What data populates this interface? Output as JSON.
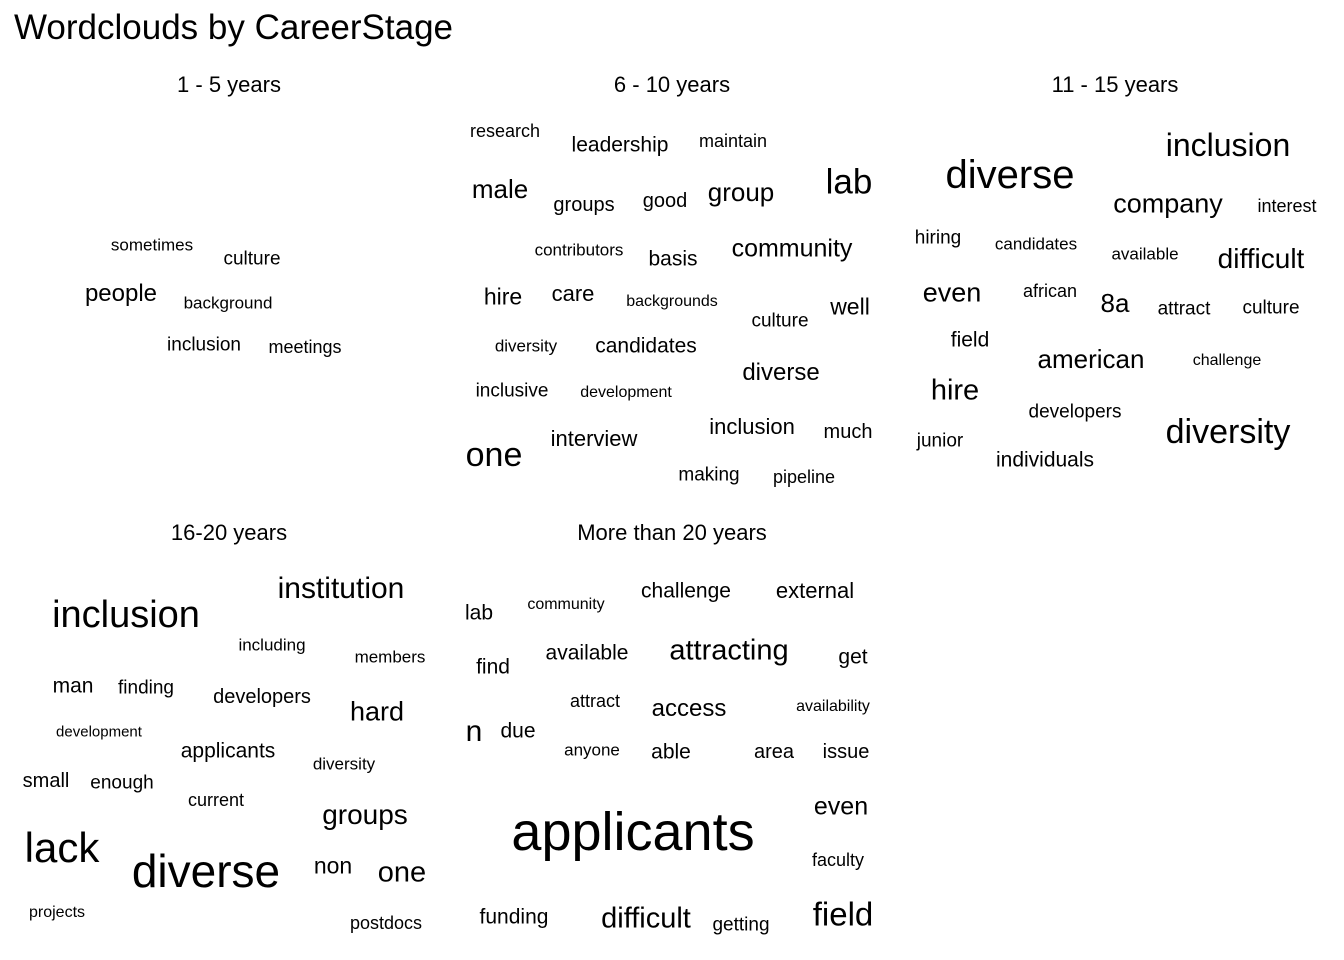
{
  "chart_data": {
    "type": "wordcloud",
    "title": "Wordclouds by CareerStage",
    "panels": [
      {
        "title": "1 - 5 years",
        "words": [
          {
            "text": "sometimes",
            "weight": 1
          },
          {
            "text": "culture",
            "weight": 2
          },
          {
            "text": "people",
            "weight": 3
          },
          {
            "text": "background",
            "weight": 1
          },
          {
            "text": "inclusion",
            "weight": 2
          },
          {
            "text": "meetings",
            "weight": 1
          }
        ]
      },
      {
        "title": "6 - 10 years",
        "words": [
          {
            "text": "research",
            "weight": 1
          },
          {
            "text": "leadership",
            "weight": 2
          },
          {
            "text": "maintain",
            "weight": 1
          },
          {
            "text": "male",
            "weight": 4
          },
          {
            "text": "groups",
            "weight": 2
          },
          {
            "text": "good",
            "weight": 2
          },
          {
            "text": "group",
            "weight": 4
          },
          {
            "text": "lab",
            "weight": 6
          },
          {
            "text": "contributors",
            "weight": 1
          },
          {
            "text": "basis",
            "weight": 2
          },
          {
            "text": "community",
            "weight": 4
          },
          {
            "text": "hire",
            "weight": 3
          },
          {
            "text": "care",
            "weight": 3
          },
          {
            "text": "backgrounds",
            "weight": 1
          },
          {
            "text": "culture",
            "weight": 2
          },
          {
            "text": "well",
            "weight": 3
          },
          {
            "text": "diversity",
            "weight": 1
          },
          {
            "text": "candidates",
            "weight": 3
          },
          {
            "text": "diverse",
            "weight": 3
          },
          {
            "text": "inclusive",
            "weight": 2
          },
          {
            "text": "development",
            "weight": 1
          },
          {
            "text": "inclusion",
            "weight": 3
          },
          {
            "text": "much",
            "weight": 2
          },
          {
            "text": "one",
            "weight": 6
          },
          {
            "text": "interview",
            "weight": 3
          },
          {
            "text": "making",
            "weight": 2
          },
          {
            "text": "pipeline",
            "weight": 1
          }
        ]
      },
      {
        "title": "11 - 15 years",
        "words": [
          {
            "text": "inclusion",
            "weight": 5
          },
          {
            "text": "diverse",
            "weight": 7
          },
          {
            "text": "company",
            "weight": 4
          },
          {
            "text": "interest",
            "weight": 1
          },
          {
            "text": "hiring",
            "weight": 2
          },
          {
            "text": "candidates",
            "weight": 1
          },
          {
            "text": "available",
            "weight": 1
          },
          {
            "text": "difficult",
            "weight": 4
          },
          {
            "text": "even",
            "weight": 4
          },
          {
            "text": "african",
            "weight": 2
          },
          {
            "text": "8a",
            "weight": 4
          },
          {
            "text": "attract",
            "weight": 2
          },
          {
            "text": "culture",
            "weight": 2
          },
          {
            "text": "field",
            "weight": 3
          },
          {
            "text": "american",
            "weight": 4
          },
          {
            "text": "challenge",
            "weight": 1
          },
          {
            "text": "hire",
            "weight": 5
          },
          {
            "text": "developers",
            "weight": 2
          },
          {
            "text": "diversity",
            "weight": 6
          },
          {
            "text": "junior",
            "weight": 2
          },
          {
            "text": "individuals",
            "weight": 3
          }
        ]
      },
      {
        "title": "16-20 years",
        "words": [
          {
            "text": "inclusion",
            "weight": 8
          },
          {
            "text": "institution",
            "weight": 6
          },
          {
            "text": "including",
            "weight": 1
          },
          {
            "text": "members",
            "weight": 1
          },
          {
            "text": "man",
            "weight": 3
          },
          {
            "text": "finding",
            "weight": 2
          },
          {
            "text": "developers",
            "weight": 3
          },
          {
            "text": "hard",
            "weight": 4
          },
          {
            "text": "development",
            "weight": 1
          },
          {
            "text": "applicants",
            "weight": 3
          },
          {
            "text": "diversity",
            "weight": 1
          },
          {
            "text": "small",
            "weight": 2
          },
          {
            "text": "enough",
            "weight": 2
          },
          {
            "text": "current",
            "weight": 2
          },
          {
            "text": "groups",
            "weight": 4
          },
          {
            "text": "lack",
            "weight": 9
          },
          {
            "text": "diverse",
            "weight": 10
          },
          {
            "text": "non",
            "weight": 3
          },
          {
            "text": "one",
            "weight": 4
          },
          {
            "text": "projects",
            "weight": 1
          },
          {
            "text": "postdocs",
            "weight": 1
          }
        ]
      },
      {
        "title": "More than 20 years",
        "words": [
          {
            "text": "lab",
            "weight": 3
          },
          {
            "text": "community",
            "weight": 1
          },
          {
            "text": "challenge",
            "weight": 3
          },
          {
            "text": "external",
            "weight": 3
          },
          {
            "text": "find",
            "weight": 3
          },
          {
            "text": "available",
            "weight": 3
          },
          {
            "text": "attracting",
            "weight": 5
          },
          {
            "text": "get",
            "weight": 3
          },
          {
            "text": "attract",
            "weight": 2
          },
          {
            "text": "access",
            "weight": 3
          },
          {
            "text": "availability",
            "weight": 1
          },
          {
            "text": "n",
            "weight": 5
          },
          {
            "text": "due",
            "weight": 3
          },
          {
            "text": "anyone",
            "weight": 1
          },
          {
            "text": "able",
            "weight": 3
          },
          {
            "text": "area",
            "weight": 3
          },
          {
            "text": "issue",
            "weight": 3
          },
          {
            "text": "applicants",
            "weight": 12
          },
          {
            "text": "even",
            "weight": 4
          },
          {
            "text": "faculty",
            "weight": 2
          },
          {
            "text": "funding",
            "weight": 3
          },
          {
            "text": "difficult",
            "weight": 5
          },
          {
            "text": "getting",
            "weight": 2
          },
          {
            "text": "field",
            "weight": 6
          }
        ]
      }
    ]
  }
}
